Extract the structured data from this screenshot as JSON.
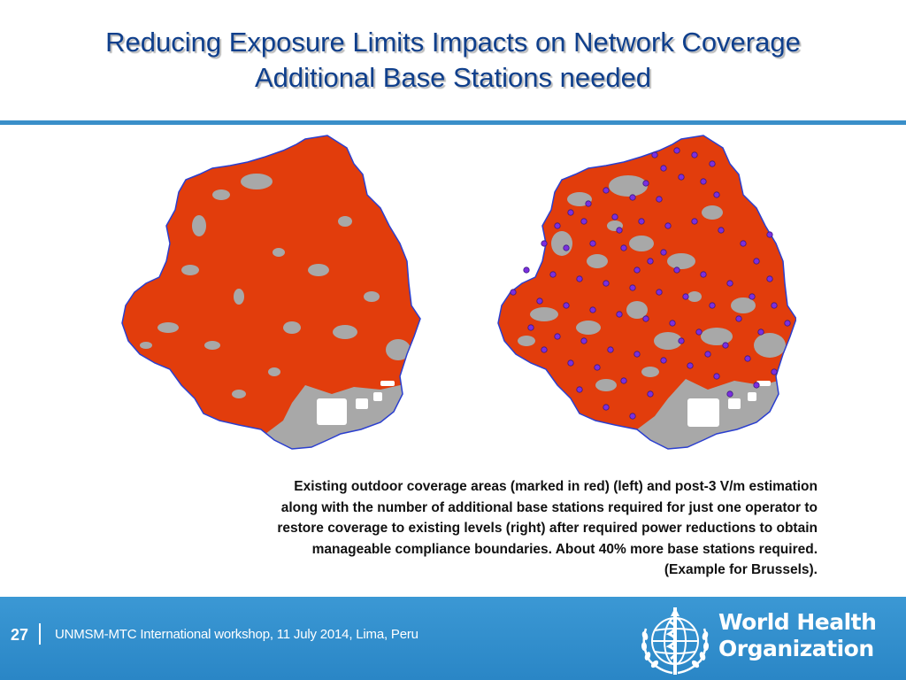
{
  "slide": {
    "title_line1": "Reducing Exposure Limits Impacts on Network Coverage",
    "title_line2": "Additional Base Stations needed",
    "caption_lines": [
      "Existing outdoor coverage areas (marked in red) (left) and post-3 V/m estimation",
      "along with the number of additional base stations required for just one operator to",
      "restore coverage to existing levels (right) after required power reductions to obtain",
      "manageable compliance boundaries. About 40% more base stations required.",
      "(Example for Brussels)."
    ]
  },
  "maps": {
    "left_label": "existing-coverage",
    "right_label": "post-3-v-m-coverage-with-base-stations"
  },
  "footer": {
    "page_number": "27",
    "event_text": "UNMSM-MTC International workshop, 11 July 2014, Lima, Peru",
    "org_name_line1": "World Health",
    "org_name_line2": "Organization"
  },
  "colors": {
    "title": "#0f3f8c",
    "rule": "#3a8fc9",
    "coverage": "#e23d0c",
    "uncovered": "#a8a8a8",
    "boundary": "#2b3fcf",
    "station": "#7b2fe0",
    "footer_bg": "#2f8ccb"
  }
}
